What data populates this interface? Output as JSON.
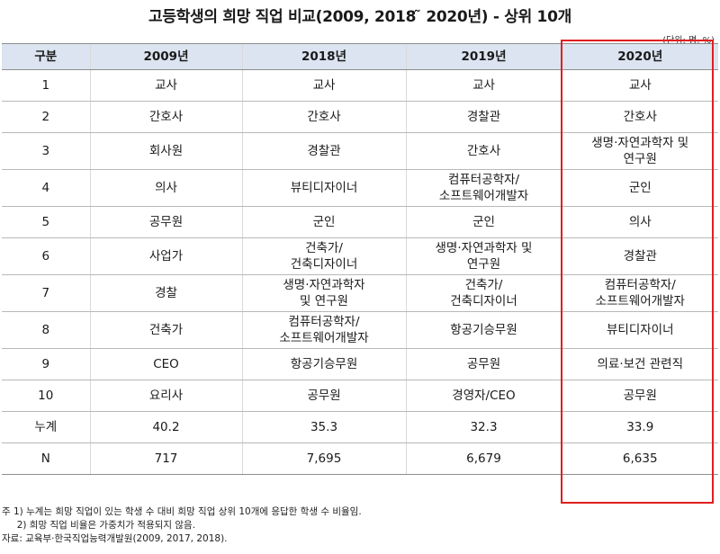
{
  "title": "고등학생의 희망 직업 비교(2009, 2018 ̃ 2020년) - 상위 10개",
  "unit": "(단위: 명, %)",
  "headers": [
    "구분",
    "2009년",
    "2018년",
    "2019년",
    "2020년"
  ],
  "rows": [
    [
      "1",
      "교사",
      "교사",
      "교사",
      "교사"
    ],
    [
      "2",
      "간호사",
      "간호사",
      "경찰관",
      "간호사"
    ],
    [
      "3",
      "회사원",
      "경찰관",
      "간호사",
      "생명·자연과학자 및\n연구원"
    ],
    [
      "4",
      "의사",
      "뷰티디자이너",
      "컴퓨터공학자/\n소프트웨어개발자",
      "군인"
    ],
    [
      "5",
      "공무원",
      "군인",
      "군인",
      "의사"
    ],
    [
      "6",
      "사업가",
      "건축가/\n건축디자이너",
      "생명·자연과학자 및\n연구원",
      "경찰관"
    ],
    [
      "7",
      "경찰",
      "생명·자연과학자\n및 연구원",
      "건축가/\n건축디자이너",
      "컴퓨터공학자/\n소프트웨어개발자"
    ],
    [
      "8",
      "건축가",
      "컴퓨터공학자/\n소프트웨어개발자",
      "항공기승무원",
      "뷰티디자이너"
    ],
    [
      "9",
      "CEO",
      "항공기승무원",
      "공무원",
      "의료·보건 관련직"
    ],
    [
      "10",
      "요리사",
      "공무원",
      "경영자/CEO",
      "공무원"
    ],
    [
      "누계",
      "40.2",
      "35.3",
      "32.3",
      "33.9"
    ],
    [
      "N",
      "717",
      "7,695",
      "6,679",
      "6,635"
    ]
  ],
  "notes": [
    "주 1) 누계는 희망 직업이 있는 학생 수 대비 희망 직업 상위 10개에 응답한 학생 수 비율임.",
    "     2) 희망 직업 비율은 가중치가 적용되지 않음.",
    "자료: 교육부·한국직업능력개발원(2009, 2017, 2018)."
  ],
  "highlight_color": "#e01f1f",
  "header_bg": "#dbe4f0"
}
